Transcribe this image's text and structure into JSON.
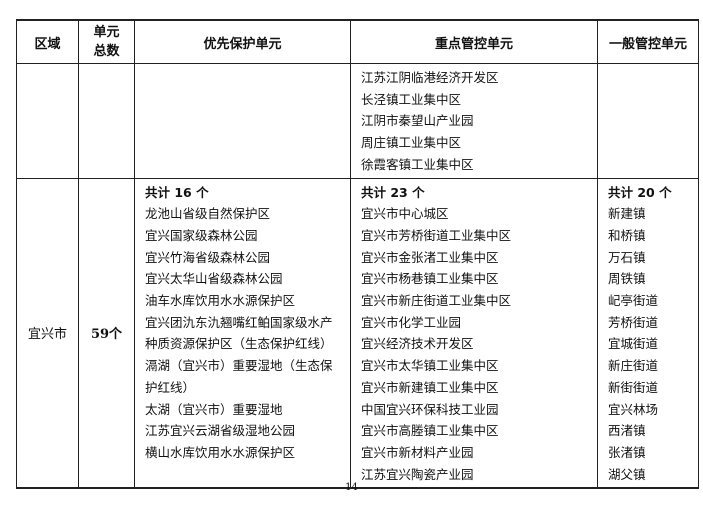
{
  "table": {
    "headers": [
      "区域",
      "单元总数",
      "优先保护单元",
      "重点管控单元",
      "一般管控单元"
    ],
    "header_unit_count_lines": [
      "单元",
      "总数"
    ],
    "continued_row": {
      "region": "",
      "total": "",
      "priority": [],
      "key": [
        "江苏江阴临港经济开发区",
        "长泾镇工业集中区",
        "江阴市秦望山产业园",
        "周庄镇工业集中区",
        "徐霞客镇工业集中区"
      ],
      "general": []
    },
    "yixing_row": {
      "region": "宜兴市",
      "total": "59个",
      "priority_total": "共计 16 个",
      "priority": [
        "龙池山省级自然保护区",
        "宜兴国家级森林公园",
        "宜兴竹海省级森林公园",
        "宜兴太华山省级森林公园",
        "油车水库饮用水水源保护区",
        "宜兴团氿东氿翘嘴红鲌国家级水产种质资源保护区（生态保护红线）",
        "滆湖（宜兴市）重要湿地（生态保护红线）",
        "太湖（宜兴市）重要湿地",
        "江苏宜兴云湖省级湿地公园",
        "横山水库饮用水水源保护区"
      ],
      "key_total": "共计 23 个",
      "key": [
        "宜兴市中心城区",
        "宜兴市芳桥街道工业集中区",
        "宜兴市金张渚工业集中区",
        "宜兴市杨巷镇工业集中区",
        "宜兴市新庄街道工业集中区",
        "宜兴市化学工业园",
        "宜兴经济技术开发区",
        "宜兴市太华镇工业集中区",
        "宜兴市新建镇工业集中区",
        "中国宜兴环保科技工业园",
        "宜兴市高塍镇工业集中区",
        "宜兴市新材料产业园",
        "江苏宜兴陶瓷产业园"
      ],
      "general_total": "共计 20 个",
      "general": [
        "新建镇",
        "和桥镇",
        "万石镇",
        "周铁镇",
        "屺亭街道",
        "芳桥街道",
        "宜城街道",
        "新庄街道",
        "新街街道",
        "宜兴林场",
        "西渚镇",
        "张渚镇",
        "湖父镇"
      ]
    }
  },
  "page_number": "14"
}
